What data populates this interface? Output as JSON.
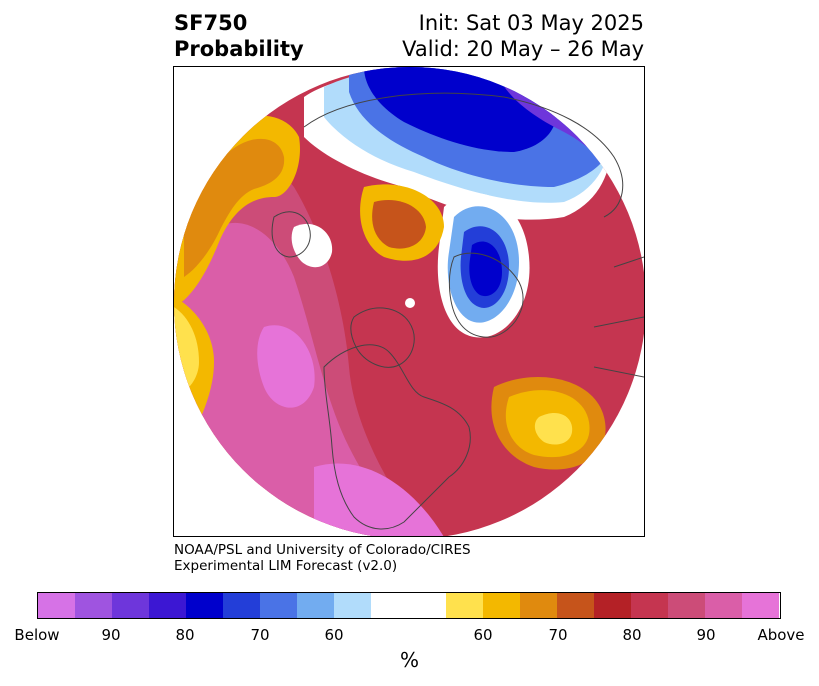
{
  "header": {
    "title_line1": "SF750",
    "title_line2": "Probability",
    "init_text": "Init: Sat 03 May 2025",
    "valid_text": "Valid: 20 May – 26 May"
  },
  "credit": {
    "line1": "NOAA/PSL and University of Colorado/CIRES",
    "line2": "Experimental LIM Forecast (v2.0)"
  },
  "colorbar": {
    "unit": "%",
    "colors": [
      "#d672e6",
      "#9f54e0",
      "#6e36db",
      "#3c17d3",
      "#0000cc",
      "#233ed8",
      "#4a73e6",
      "#72acf0",
      "#b1dcfb",
      "#ffffff",
      "#ffe14d",
      "#f3b800",
      "#e08a0e",
      "#c6541b",
      "#b42126",
      "#c53550",
      "#cc4c78",
      "#da5ea8",
      "#e673d8"
    ],
    "tick_labels": [
      "Below",
      "90",
      "80",
      "70",
      "60",
      "60",
      "70",
      "80",
      "90",
      "Above"
    ]
  },
  "map": {
    "projection": "north-polar-stereographic",
    "palette": {
      "above_far": "#e673d8",
      "above_90": "#da5ea8",
      "above_85": "#cc4c78",
      "above_80": "#c53550",
      "above_75": "#b42126",
      "above_70": "#c6541b",
      "above_65": "#e08a0e",
      "above_60": "#f3b800",
      "above_55": "#ffe14d",
      "neutral": "#ffffff",
      "below_55": "#b1dcfb",
      "below_60": "#72acf0",
      "below_65": "#4a73e6",
      "below_70": "#233ed8",
      "below_75": "#0000cc",
      "below_80": "#3c17d3",
      "below_85": "#6e36db",
      "below_90": "#9f54e0",
      "below_far": "#d672e6",
      "coastline": "#444444"
    }
  }
}
